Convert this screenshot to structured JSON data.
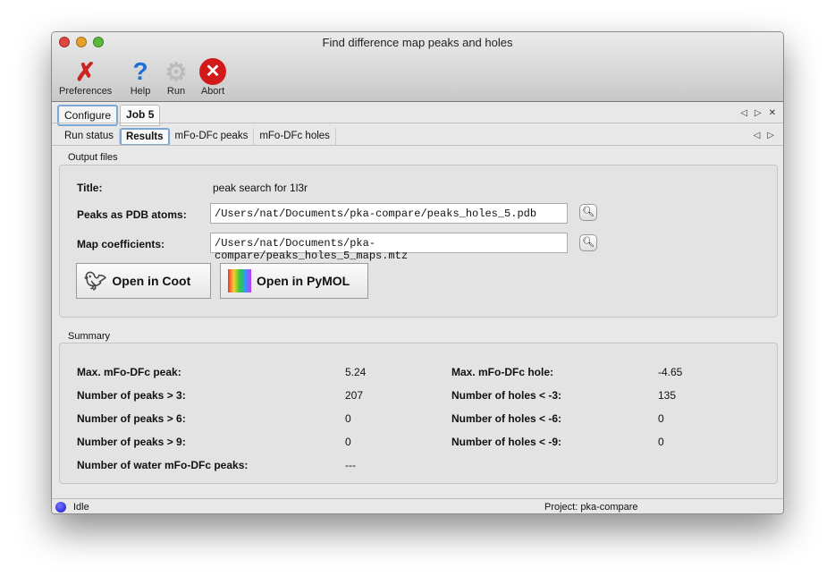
{
  "window": {
    "title": "Find difference map peaks and holes"
  },
  "toolbar": [
    {
      "label": "Preferences",
      "icon": "tools-icon"
    },
    {
      "label": "Help",
      "icon": "help-icon"
    },
    {
      "label": "Run",
      "icon": "gear-icon"
    },
    {
      "label": "Abort",
      "icon": "abort-icon"
    }
  ],
  "tabs": [
    "Configure",
    "Job 5"
  ],
  "subtabs": [
    "Run status",
    "Results",
    "mFo-DFc peaks",
    "mFo-DFc holes"
  ],
  "output": {
    "group_label": "Output files",
    "title_label": "Title:",
    "title_value": "peak search for 1l3r",
    "pdb_label": "Peaks as PDB atoms:",
    "pdb_value": "/Users/nat/Documents/pka-compare/peaks_holes_5.pdb",
    "map_label": "Map coefficients:",
    "map_value": "/Users/nat/Documents/pka-compare/peaks_holes_5_maps.mtz",
    "coot_button": "Open in Coot",
    "pymol_button": "Open in PyMOL"
  },
  "summary": {
    "group_label": "Summary",
    "left": [
      {
        "label": "Max. mFo-DFc peak:",
        "value": "5.24"
      },
      {
        "label": "Number of peaks > 3:",
        "value": "207"
      },
      {
        "label": "Number of peaks > 6:",
        "value": "0"
      },
      {
        "label": "Number of peaks > 9:",
        "value": "0"
      },
      {
        "label": "Number of water mFo-DFc peaks:",
        "value": "---"
      }
    ],
    "right": [
      {
        "label": "Max. mFo-DFc hole:",
        "value": "-4.65"
      },
      {
        "label": "Number of holes < -3:",
        "value": "135"
      },
      {
        "label": "Number of holes < -6:",
        "value": "0"
      },
      {
        "label": "Number of holes < -9:",
        "value": "0"
      }
    ]
  },
  "status": {
    "text": "Idle",
    "project": "Project: pka-compare"
  }
}
